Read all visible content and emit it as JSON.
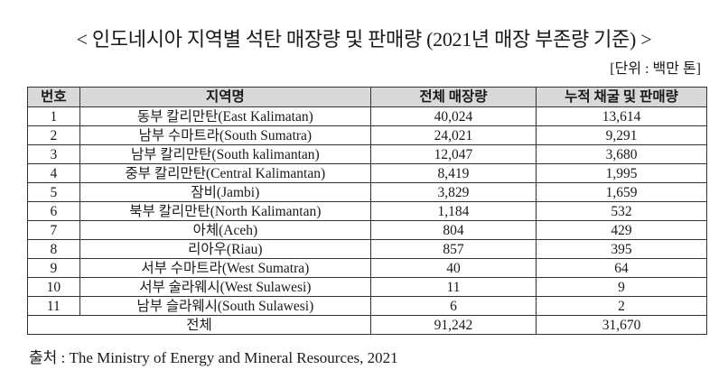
{
  "title": "< 인도네시아 지역별 석탄 매장량 및 판매량 (2021년 매장 부존량 기준) >",
  "unit": "[단위 : 백만 톤]",
  "table": {
    "headers": [
      "번호",
      "지역명",
      "전체 매장량",
      "누적 채굴 및 판매량"
    ],
    "rows": [
      [
        "1",
        "동부 칼리만탄(East Kalimatan)",
        "40,024",
        "13,614"
      ],
      [
        "2",
        "남부 수마트라(South Sumatra)",
        "24,021",
        "9,291"
      ],
      [
        "3",
        "남부 칼리만탄(South kalimantan)",
        "12,047",
        "3,680"
      ],
      [
        "4",
        "중부 칼리만탄(Central Kalimantan)",
        "8,419",
        "1,995"
      ],
      [
        "5",
        "잠비(Jambi)",
        "3,829",
        "1,659"
      ],
      [
        "6",
        "북부 칼리만탄(North Kalimantan)",
        "1,184",
        "532"
      ],
      [
        "7",
        "아체(Aceh)",
        "804",
        "429"
      ],
      [
        "8",
        "리아우(Riau)",
        "857",
        "395"
      ],
      [
        "9",
        "서부 수마트라(West Sumatra)",
        "40",
        "64"
      ],
      [
        "10",
        "서부 술라웨시(West Sulawesi)",
        "11",
        "9"
      ],
      [
        "11",
        "남부 슬라웨시(South Sulawesi)",
        "6",
        "2"
      ]
    ],
    "total": {
      "label": "전체",
      "reserves": "91,242",
      "cumulative": "31,670"
    }
  },
  "source": "출처 : The Ministry of Energy and Mineral Resources, 2021"
}
